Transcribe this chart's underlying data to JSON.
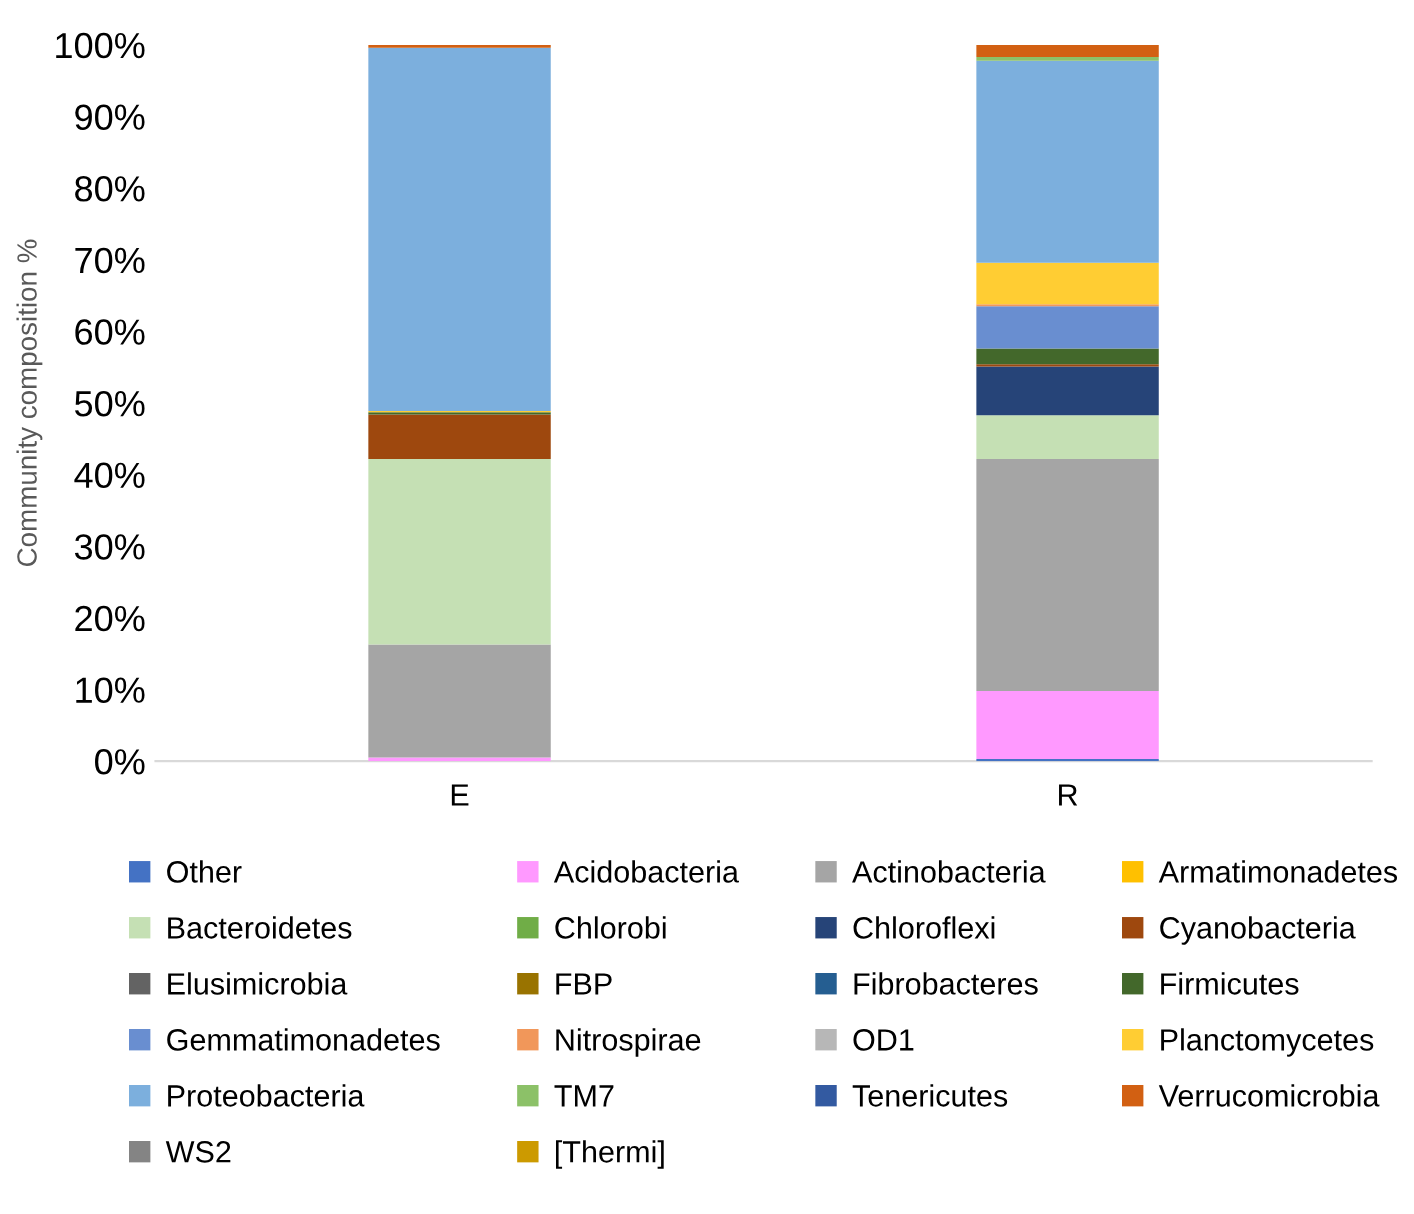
{
  "chart_data": {
    "type": "bar",
    "stacked": true,
    "ylabel": "Community composition %",
    "categories": [
      "E",
      "R"
    ],
    "ylim": [
      0,
      100
    ],
    "yticks": [
      {
        "value": 0,
        "label": "0%"
      },
      {
        "value": 10,
        "label": "10%"
      },
      {
        "value": 20,
        "label": "20%"
      },
      {
        "value": 30,
        "label": "30%"
      },
      {
        "value": 40,
        "label": "40%"
      },
      {
        "value": 50,
        "label": "50%"
      },
      {
        "value": 60,
        "label": "60%"
      },
      {
        "value": 70,
        "label": "70%"
      },
      {
        "value": 80,
        "label": "80%"
      },
      {
        "value": 90,
        "label": "90%"
      },
      {
        "value": 100,
        "label": "100%"
      }
    ],
    "grid": false,
    "legend": "bottom",
    "series": [
      {
        "name": "Other",
        "color": "#4472c4",
        "values": [
          0,
          0.3
        ]
      },
      {
        "name": "Acidobacteria",
        "color": "#ff99ff",
        "values": [
          0.5,
          9.5
        ]
      },
      {
        "name": "Actinobacteria",
        "color": "#a5a5a5",
        "values": [
          15.8,
          32.4
        ]
      },
      {
        "name": "Armatimonadetes",
        "color": "#ffc000",
        "values": [
          0,
          0
        ]
      },
      {
        "name": "Bacteroidetes",
        "color": "#c5e0b4",
        "values": [
          25.9,
          6.1
        ]
      },
      {
        "name": "Chlorobi",
        "color": "#70ad47",
        "values": [
          0,
          0
        ]
      },
      {
        "name": "Chloroflexi",
        "color": "#264478",
        "values": [
          0,
          6.8
        ]
      },
      {
        "name": "Cyanobacteria",
        "color": "#9e480e",
        "values": [
          6.2,
          0.3
        ]
      },
      {
        "name": "Elusimicrobia",
        "color": "#636363",
        "values": [
          0,
          0
        ]
      },
      {
        "name": "FBP",
        "color": "#997300",
        "values": [
          0,
          0
        ]
      },
      {
        "name": "Fibrobacteres",
        "color": "#255e91",
        "values": [
          0,
          0
        ]
      },
      {
        "name": "Firmicutes",
        "color": "#43682b",
        "values": [
          0.3,
          2.2
        ]
      },
      {
        "name": "Gemmatimonadetes",
        "color": "#698ed0",
        "values": [
          0,
          5.9
        ]
      },
      {
        "name": "Nitrospirae",
        "color": "#f1975a",
        "values": [
          0,
          0.3
        ]
      },
      {
        "name": "OD1",
        "color": "#b7b7b7",
        "values": [
          0,
          0
        ]
      },
      {
        "name": "Planctomycetes",
        "color": "#ffcd33",
        "values": [
          0.2,
          5.8
        ]
      },
      {
        "name": "Proteobacteria",
        "color": "#7cafdd",
        "values": [
          50.7,
          28.2
        ]
      },
      {
        "name": "TM7",
        "color": "#8cc168",
        "values": [
          0,
          0.5
        ]
      },
      {
        "name": "Tenericutes",
        "color": "#335aa1",
        "values": [
          0,
          0
        ]
      },
      {
        "name": "Verrucomicrobia",
        "color": "#d26012",
        "values": [
          0.4,
          1.7
        ]
      },
      {
        "name": "WS2",
        "color": "#848484",
        "values": [
          0,
          0
        ]
      },
      {
        "name": "[Thermi]",
        "color": "#cc9a00",
        "values": [
          0,
          0
        ]
      }
    ]
  }
}
